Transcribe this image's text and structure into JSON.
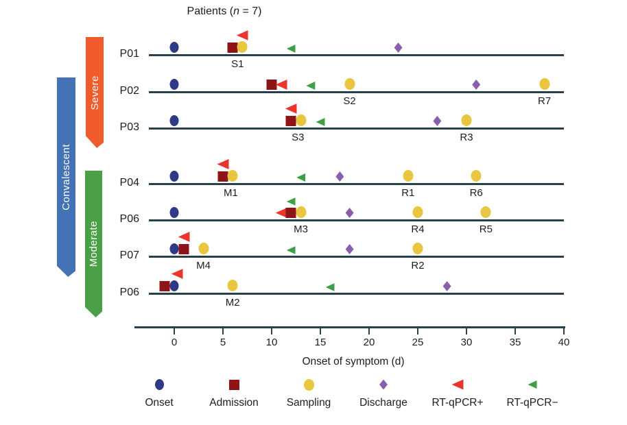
{
  "title": {
    "pre": "Patients (",
    "italic": "n",
    "post": " = 7)"
  },
  "chart_data": {
    "type": "scatter",
    "subtype": "patient-event-timeline",
    "title": "Patients (n = 7)",
    "xlabel": "Onset of symptom (d)",
    "x_ticks": [
      0,
      5,
      10,
      15,
      20,
      25,
      30,
      35,
      40
    ],
    "xlim": [
      -2.6,
      40
    ],
    "grid": false,
    "legend_position": "bottom",
    "cohort_label": "Convalescent",
    "cohort_color": "#4372b6",
    "severity_groups": [
      {
        "label": "Severe",
        "color": "#f15b2b",
        "patients": [
          "P01",
          "P02",
          "P03"
        ]
      },
      {
        "label": "Moderate",
        "color": "#4ba047",
        "patients": [
          "P04",
          "P06",
          "P07",
          "P06"
        ]
      }
    ],
    "legend": [
      {
        "label": "Onset",
        "marker": "onset",
        "color": "#2e3a88"
      },
      {
        "label": "Admission",
        "marker": "admission",
        "color": "#8e1418"
      },
      {
        "label": "Sampling",
        "marker": "sampling",
        "color": "#e9c63f"
      },
      {
        "label": "Discharge",
        "marker": "discharge",
        "color": "#8a5dad"
      },
      {
        "label": "RT-qPCR+",
        "marker": "rtqpcr_pos",
        "color": "#ea352c"
      },
      {
        "label": "RT-qPCR−",
        "marker": "rtqpcr_neg",
        "color": "#3ea044"
      }
    ],
    "rows": [
      {
        "patient": "P01",
        "group": "Severe",
        "events": [
          {
            "type": "onset",
            "day": 0
          },
          {
            "type": "admission",
            "day": 6
          },
          {
            "type": "rtqpcr_pos",
            "day": 7,
            "raised": true
          },
          {
            "type": "sampling",
            "day": 7
          },
          {
            "type": "rtqpcr_neg",
            "day": 12
          },
          {
            "type": "discharge",
            "day": 23
          }
        ],
        "labels": [
          {
            "text": "S1",
            "day": 6.5
          }
        ]
      },
      {
        "patient": "P02",
        "group": "Severe",
        "events": [
          {
            "type": "onset",
            "day": 0
          },
          {
            "type": "admission",
            "day": 10
          },
          {
            "type": "rtqpcr_pos",
            "day": 11
          },
          {
            "type": "rtqpcr_neg",
            "day": 14
          },
          {
            "type": "sampling",
            "day": 18
          },
          {
            "type": "discharge",
            "day": 31
          },
          {
            "type": "sampling",
            "day": 38
          }
        ],
        "labels": [
          {
            "text": "S2",
            "day": 18
          },
          {
            "text": "R7",
            "day": 38
          }
        ]
      },
      {
        "patient": "P03",
        "group": "Severe",
        "events": [
          {
            "type": "onset",
            "day": 0
          },
          {
            "type": "rtqpcr_pos",
            "day": 12,
            "raised": true
          },
          {
            "type": "admission",
            "day": 12
          },
          {
            "type": "sampling",
            "day": 13
          },
          {
            "type": "rtqpcr_neg",
            "day": 15
          },
          {
            "type": "discharge",
            "day": 27
          },
          {
            "type": "sampling",
            "day": 30
          }
        ],
        "labels": [
          {
            "text": "S3",
            "day": 12.7
          },
          {
            "text": "R3",
            "day": 30
          }
        ]
      },
      {
        "patient": "P04",
        "group": "Moderate",
        "events": [
          {
            "type": "onset",
            "day": 0
          },
          {
            "type": "rtqpcr_pos",
            "day": 5,
            "raised": true
          },
          {
            "type": "admission",
            "day": 5
          },
          {
            "type": "sampling",
            "day": 6
          },
          {
            "type": "rtqpcr_neg",
            "day": 13
          },
          {
            "type": "discharge",
            "day": 17
          },
          {
            "type": "sampling",
            "day": 24
          },
          {
            "type": "sampling",
            "day": 31
          }
        ],
        "labels": [
          {
            "text": "M1",
            "day": 5.8
          },
          {
            "text": "R1",
            "day": 24
          },
          {
            "text": "R6",
            "day": 31
          }
        ]
      },
      {
        "patient": "P06",
        "group": "Moderate",
        "events": [
          {
            "type": "onset",
            "day": 0
          },
          {
            "type": "rtqpcr_pos",
            "day": 11
          },
          {
            "type": "rtqpcr_neg",
            "day": 12,
            "raised": true
          },
          {
            "type": "admission",
            "day": 12
          },
          {
            "type": "sampling",
            "day": 13
          },
          {
            "type": "discharge",
            "day": 18
          },
          {
            "type": "sampling",
            "day": 25
          },
          {
            "type": "sampling",
            "day": 32
          }
        ],
        "labels": [
          {
            "text": "M3",
            "day": 13
          },
          {
            "text": "R4",
            "day": 25
          },
          {
            "text": "R5",
            "day": 32
          }
        ]
      },
      {
        "patient": "P07",
        "group": "Moderate",
        "events": [
          {
            "type": "onset",
            "day": 0
          },
          {
            "type": "rtqpcr_pos",
            "day": 1,
            "raised": true
          },
          {
            "type": "admission",
            "day": 1
          },
          {
            "type": "sampling",
            "day": 3
          },
          {
            "type": "rtqpcr_neg",
            "day": 12
          },
          {
            "type": "discharge",
            "day": 18
          },
          {
            "type": "sampling",
            "day": 25
          }
        ],
        "labels": [
          {
            "text": "M4",
            "day": 3
          },
          {
            "text": "R2",
            "day": 25
          }
        ]
      },
      {
        "patient": "P06",
        "group": "Moderate",
        "events": [
          {
            "type": "admission",
            "day": -1
          },
          {
            "type": "rtqpcr_pos",
            "day": 0.3,
            "raised": true
          },
          {
            "type": "onset",
            "day": 0
          },
          {
            "type": "sampling",
            "day": 6
          },
          {
            "type": "rtqpcr_neg",
            "day": 16
          },
          {
            "type": "discharge",
            "day": 28
          }
        ],
        "labels": [
          {
            "text": "M2",
            "day": 6
          }
        ]
      }
    ]
  }
}
